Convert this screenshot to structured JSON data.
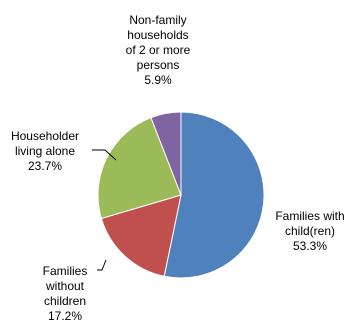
{
  "chart_data": {
    "type": "pie",
    "title": "",
    "start_angle_deg": 0,
    "direction": "clockwise",
    "legend": "none",
    "slices": [
      {
        "label_lines": [
          "Families with",
          "child(ren)"
        ],
        "value_text": "53.3%",
        "value": 53.3,
        "color": "#4F81BD"
      },
      {
        "label_lines": [
          "Families",
          "without",
          "children"
        ],
        "value_text": "17.2%",
        "value": 17.2,
        "color": "#C0504D"
      },
      {
        "label_lines": [
          "Householder",
          "living alone"
        ],
        "value_text": "23.7%",
        "value": 23.7,
        "color": "#9BBB59"
      },
      {
        "label_lines": [
          "Non-family",
          "households",
          "of 2 or more",
          "persons"
        ],
        "value_text": "5.9%",
        "value": 5.9,
        "color": "#8064A2"
      }
    ]
  }
}
